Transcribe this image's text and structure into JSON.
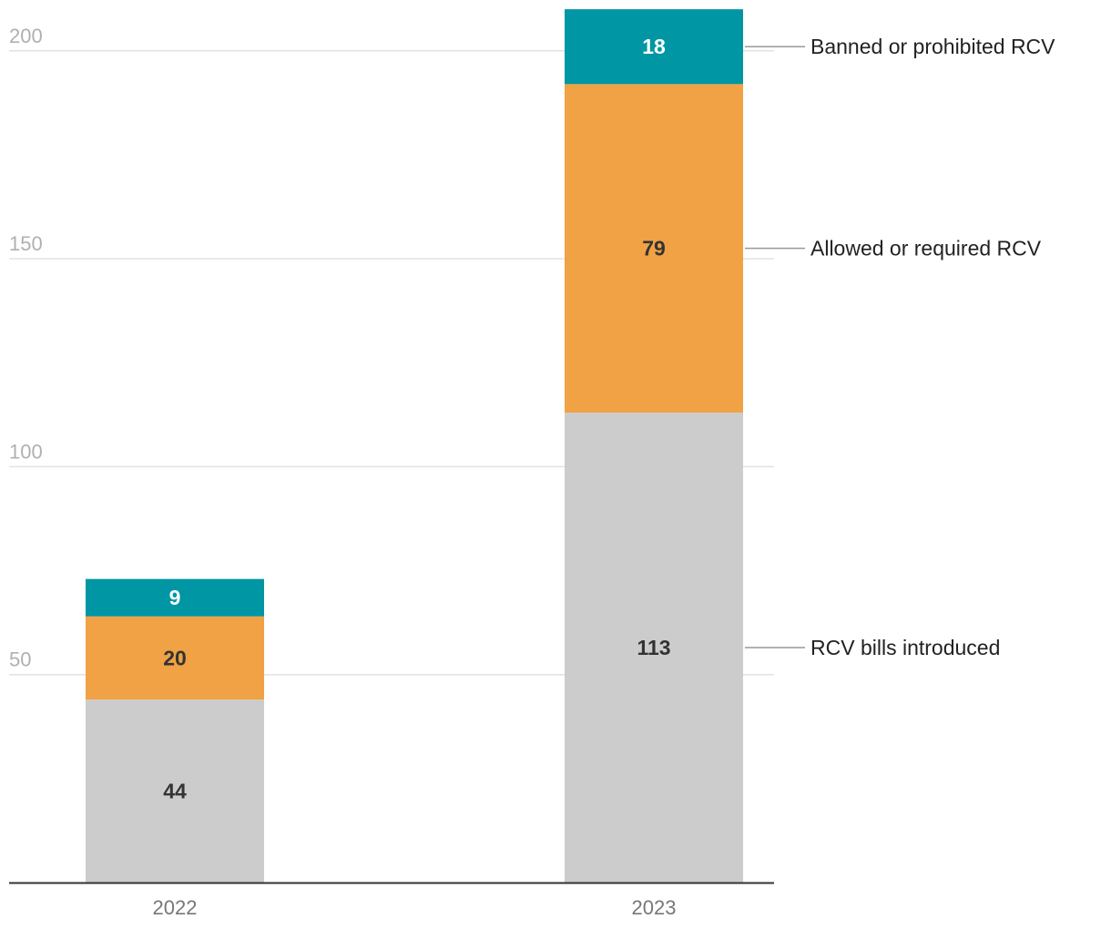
{
  "chart_data": {
    "type": "bar",
    "stacked": true,
    "categories": [
      "2022",
      "2023"
    ],
    "series": [
      {
        "name": "RCV bills introduced",
        "values": [
          44,
          113
        ],
        "color": "#cccccc",
        "label_color": "#333333"
      },
      {
        "name": "Allowed or required RCV",
        "values": [
          20,
          79
        ],
        "color": "#f0a244",
        "label_color": "#333333"
      },
      {
        "name": "Banned or prohibited RCV",
        "values": [
          9,
          18
        ],
        "color": "#0096a3",
        "label_color": "#ffffff"
      }
    ],
    "yticks": [
      50,
      100,
      150,
      200
    ],
    "ylim": [
      0,
      210
    ],
    "grid": true,
    "legend": "right, labels aligned to the last bar's segments",
    "title": "",
    "xlabel": "",
    "ylabel": ""
  },
  "colors": {
    "grid": "#e2e2e2",
    "axis": "#333333",
    "leader": "#999999"
  }
}
